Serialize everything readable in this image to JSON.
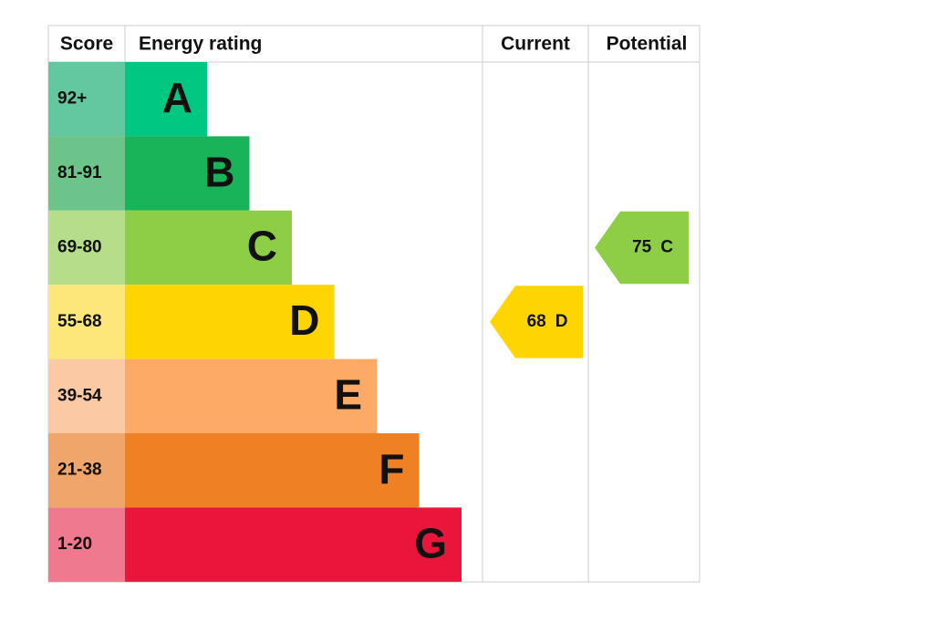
{
  "header": {
    "score": "Score",
    "rating": "Energy rating",
    "current": "Current",
    "potential": "Potential"
  },
  "rows": [
    {
      "score": "92+",
      "letter": "A",
      "color": "#00c781",
      "score_color": "#63c8a0"
    },
    {
      "score": "81-91",
      "letter": "B",
      "color": "#19b459",
      "score_color": "#6cc48a"
    },
    {
      "score": "69-80",
      "letter": "C",
      "color": "#8dce46",
      "score_color": "#b5dd8a"
    },
    {
      "score": "55-68",
      "letter": "D",
      "color": "#ffd500",
      "score_color": "#fde67a"
    },
    {
      "score": "39-54",
      "letter": "E",
      "color": "#fcaa65",
      "score_color": "#fbc9a3"
    },
    {
      "score": "21-38",
      "letter": "F",
      "color": "#ef8023",
      "score_color": "#f0a56a"
    },
    {
      "score": "1-20",
      "letter": "G",
      "color": "#e9153b",
      "score_color": "#ef7a90"
    }
  ],
  "current": {
    "value": 68,
    "band": "D"
  },
  "potential": {
    "value": 75,
    "band": "C"
  }
}
